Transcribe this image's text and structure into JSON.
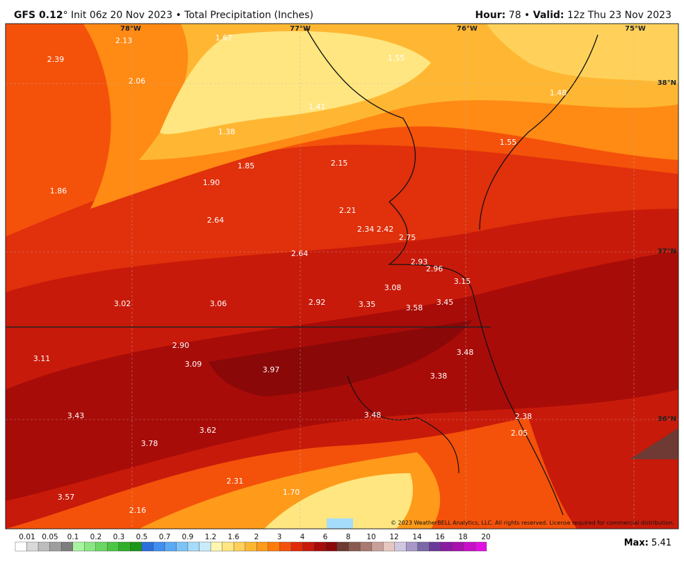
{
  "header": {
    "model": "GFS 0.12",
    "title_rest": "° Init 06z 20 Nov 2023 • Total Precipitation (Inches)",
    "hour_label": "Hour:",
    "hour": "78",
    "valid_label": "Valid:",
    "valid": "12z Thu 23 Nov 2023"
  },
  "map": {
    "longitudes": [
      "78°W",
      "77°W",
      "76°W",
      "75°W"
    ],
    "latitudes": [
      "38°N",
      "37°N",
      "36°N"
    ],
    "labels": [
      "2.13",
      "1.67",
      "1.55",
      "2.39",
      "2.06",
      "1.48",
      "1.41",
      "1.38",
      "1.55",
      "1.85",
      "2.15",
      "1.90",
      "1.86",
      "2.21",
      "2.64",
      "2.34",
      "2.42",
      "2.75",
      "2.64",
      "2.93",
      "2.96",
      "3.15",
      "3.08",
      "3.02",
      "3.06",
      "2.92",
      "3.35",
      "3.58",
      "3.45",
      "2.90",
      "3.48",
      "3.11",
      "3.09",
      "3.97",
      "3.38",
      "3.48",
      "2.38",
      "3.43",
      "3.62",
      "2.05",
      "3.78",
      "2.31",
      "1.70",
      "3.57",
      "2.16"
    ],
    "copyright": "© 2023 WeatherBELL Analytics, LLC. All rights reserved. License required for commercial distribution."
  },
  "colorbar": {
    "labels": [
      "0.01",
      "0.05",
      "0.1",
      "0.2",
      "0.3",
      "0.5",
      "0.7",
      "0.9",
      "1.2",
      "1.6",
      "2",
      "3",
      "4",
      "6",
      "8",
      "10",
      "12",
      "14",
      "16",
      "18",
      "20"
    ],
    "colors": [
      "#ffffff",
      "#d9d9d9",
      "#bdbdbd",
      "#9e9e9e",
      "#7d7d7d",
      "#a8f5a0",
      "#8ae882",
      "#6bd663",
      "#4cc645",
      "#2fb02a",
      "#1a9618",
      "#2a6fdb",
      "#3e8ff0",
      "#5aa9f5",
      "#7cc4f8",
      "#a6dcfb",
      "#c9ecfd",
      "#fff7b0",
      "#ffe680",
      "#ffd15a",
      "#ffb733",
      "#ff9a1a",
      "#ff7a0a",
      "#f4520a",
      "#e02a0a",
      "#c81a0a",
      "#a80c08",
      "#8a0808",
      "#6e3a33",
      "#8a5a50",
      "#a87a70",
      "#c8a098",
      "#e6c8c0",
      "#d0c8e0",
      "#a898c8",
      "#7a68a8",
      "#6a3a98",
      "#8a1aa0",
      "#a810b0",
      "#c810c8",
      "#e010e0"
    ],
    "max_label": "Max:",
    "max": "5.41"
  }
}
